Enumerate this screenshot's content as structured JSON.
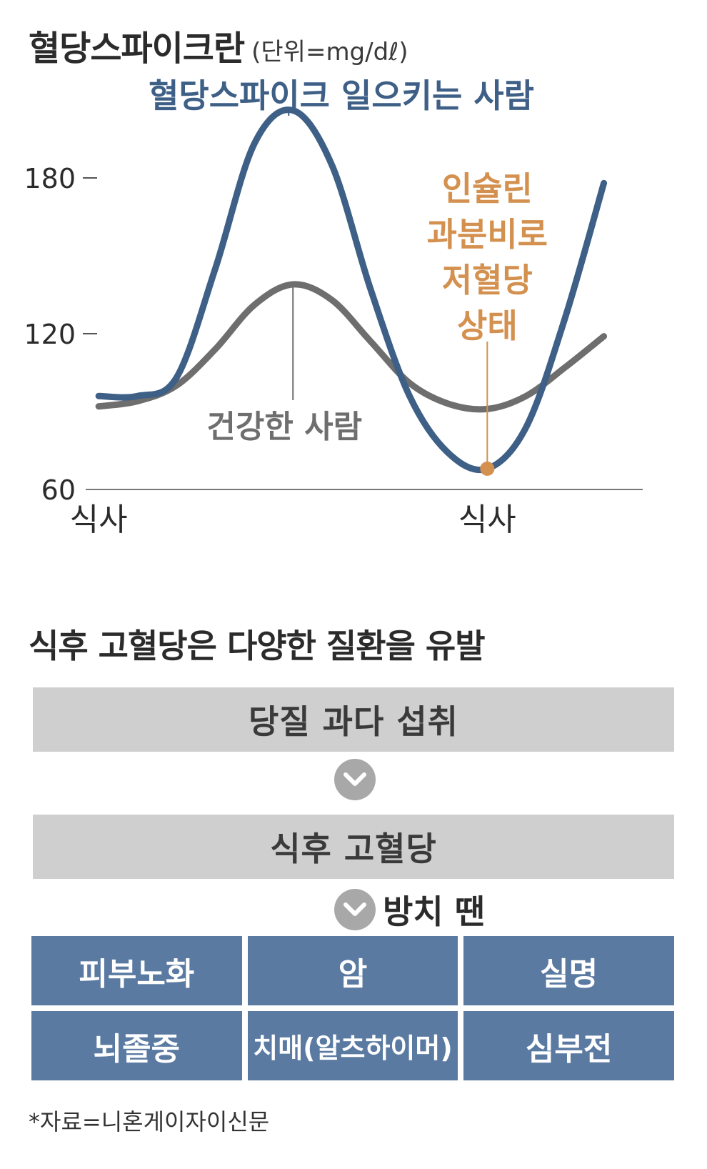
{
  "header": {
    "title": "혈당스파이크란",
    "unit": "(단위=mg/dℓ)"
  },
  "chart_data": {
    "type": "line",
    "ylim": [
      60,
      210
    ],
    "yticks": [
      60,
      120,
      180
    ],
    "x_tick_labels": [
      {
        "x": 0,
        "label": "식사"
      },
      {
        "x": 60,
        "label": "식사"
      }
    ],
    "xlim": [
      -2,
      84
    ],
    "series": [
      {
        "name": "혈당스파이크 일으키는 사람",
        "color": "#3e5f86",
        "x": [
          0,
          6,
          12,
          18,
          24,
          30,
          36,
          42,
          48,
          54,
          60,
          66,
          72,
          78
        ],
        "y": [
          96,
          96,
          103,
          145,
          193,
          206,
          185,
          137,
          96,
          74,
          68,
          84,
          126,
          178
        ]
      },
      {
        "name": "건강한 사람",
        "color": "#6e6e6e",
        "x": [
          0,
          6,
          12,
          18,
          24,
          30,
          36,
          42,
          48,
          54,
          60,
          66,
          72,
          78
        ],
        "y": [
          92,
          94,
          100,
          114,
          131,
          139,
          133,
          117,
          101,
          93,
          91,
          96,
          107,
          119
        ]
      }
    ],
    "annotations": [
      {
        "text": "인슐린\n과분비로\n저혈당\n상태",
        "color": "#d4904e",
        "x": 60,
        "y": 68
      }
    ]
  },
  "flow": {
    "title": "식후 고혈당은 다양한 질환을 유발",
    "step1": "당질 과다 섭취",
    "step2": "식후 고혈당",
    "neglect_label": "방치 땐",
    "diseases": [
      "피부노화",
      "암",
      "실명",
      "뇌졸중",
      "치매(알츠하이머)",
      "심부전"
    ]
  },
  "source": "*자료=니혼게이자이신문",
  "colors": {
    "spike": "#3e5f86",
    "healthy": "#6e6e6e",
    "annotation": "#d4904e",
    "box_gray": "#cfcfcf",
    "cell_blue": "#5a7aa2"
  }
}
